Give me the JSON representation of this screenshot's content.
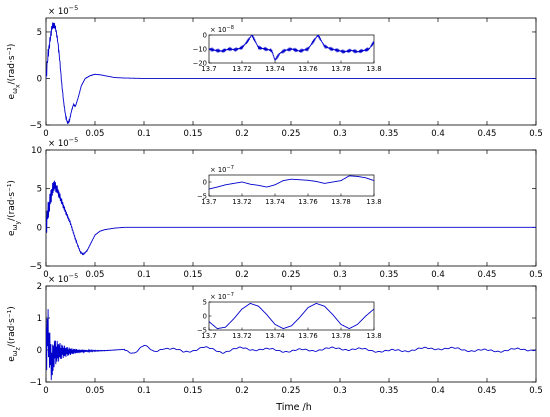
{
  "figure": {
    "xlabel": "Time /h"
  },
  "chart_data": [
    {
      "type": "line",
      "ylabel_main": "e",
      "ylabel_sub1": "ω",
      "ylabel_sub2": "x",
      "ylabel_unit": "/(rad·s⁻¹)",
      "y_exponent_base": "× 10",
      "y_exponent_power": "−5",
      "xlim": [
        0,
        0.5
      ],
      "ylim": [
        -5,
        6.5
      ],
      "xticks": [
        0,
        0.05,
        0.1,
        0.15,
        0.2,
        0.25,
        0.3,
        0.35,
        0.4,
        0.45,
        0.5
      ],
      "xtick_labels": [
        "0",
        "0.05",
        "0.1",
        "0.15",
        "0.2",
        "0.25",
        "0.3",
        "0.35",
        "0.4",
        "0.45",
        "0.5"
      ],
      "yticks": [
        -5,
        0,
        5
      ],
      "ytick_labels": [
        "−5",
        "0",
        "5"
      ],
      "series": [
        {
          "color": "#0000cc",
          "x": [
            0,
            0.002,
            0.004,
            0.006,
            0.008,
            0.01,
            0.012,
            0.014,
            0.016,
            0.018,
            0.02,
            0.022,
            0.024,
            0.026,
            0.028,
            0.03,
            0.033,
            0.036,
            0.04,
            0.045,
            0.05,
            0.055,
            0.06,
            0.07,
            0.08,
            0.1,
            0.15,
            0.2,
            0.3,
            0.4,
            0.5
          ],
          "values": [
            0,
            2.5,
            4,
            5.5,
            5.8,
            5.3,
            4,
            2,
            -0.5,
            -2.5,
            -4,
            -4.8,
            -4.5,
            -3.5,
            -2.8,
            -3,
            -2,
            -0.8,
            0,
            0.3,
            0.45,
            0.4,
            0.3,
            0.1,
            0.05,
            0,
            0,
            0,
            0,
            0,
            0
          ],
          "oscillation": 0.7
        }
      ],
      "inset": {
        "xlim": [
          13.7,
          13.8
        ],
        "ylim": [
          -20,
          0
        ],
        "xticks": [
          13.7,
          13.72,
          13.74,
          13.76,
          13.78,
          13.8
        ],
        "xtick_labels": [
          "13.7",
          "13.72",
          "13.74",
          "13.76",
          "13.78",
          "13.8"
        ],
        "yticks": [
          -20,
          -10,
          0
        ],
        "ytick_labels": [
          "−20",
          "−10",
          "0"
        ],
        "y_exponent_base": "× 10",
        "y_exponent_power": "−8",
        "x": [
          13.7,
          13.704,
          13.708,
          13.712,
          13.716,
          13.72,
          13.723,
          13.726,
          13.73,
          13.734,
          13.738,
          13.74,
          13.743,
          13.746,
          13.75,
          13.755,
          13.76,
          13.763,
          13.766,
          13.77,
          13.774,
          13.778,
          13.782,
          13.786,
          13.79,
          13.794,
          13.797,
          13.8
        ],
        "values": [
          -10,
          -11,
          -11.5,
          -10,
          -10.5,
          -9,
          -5,
          0,
          -9,
          -10,
          -11,
          -18,
          -13,
          -11,
          -10,
          -11.5,
          -10,
          -5,
          0,
          -8,
          -10,
          -11,
          -12,
          -11,
          -12,
          -11,
          -10,
          -5
        ]
      }
    },
    {
      "type": "line",
      "ylabel_main": "e",
      "ylabel_sub1": "ω",
      "ylabel_sub2": "y",
      "ylabel_unit": "/(rad·s⁻¹)",
      "y_exponent_base": "× 10",
      "y_exponent_power": "−5",
      "xlim": [
        0,
        0.5
      ],
      "ylim": [
        -5,
        10
      ],
      "xticks": [
        0,
        0.05,
        0.1,
        0.15,
        0.2,
        0.25,
        0.3,
        0.35,
        0.4,
        0.45,
        0.5
      ],
      "xtick_labels": [
        "0",
        "0.05",
        "0.1",
        "0.15",
        "0.2",
        "0.25",
        "0.3",
        "0.35",
        "0.4",
        "0.45",
        "0.5"
      ],
      "yticks": [
        -5,
        0,
        5,
        10
      ],
      "ytick_labels": [
        "−5",
        "0",
        "5",
        "10"
      ],
      "series": [
        {
          "color": "#0000cc",
          "x": [
            0,
            0.002,
            0.005,
            0.008,
            0.011,
            0.014,
            0.017,
            0.02,
            0.025,
            0.03,
            0.035,
            0.038,
            0.042,
            0.046,
            0.05,
            0.055,
            0.06,
            0.07,
            0.08,
            0.1,
            0.15,
            0.2,
            0.3,
            0.4,
            0.5
          ],
          "values": [
            0,
            2,
            4,
            5.5,
            5,
            4,
            3,
            2,
            0.5,
            -1.5,
            -3.2,
            -3.5,
            -3,
            -2,
            -1,
            -0.5,
            -0.3,
            -0.1,
            0,
            0,
            0,
            0,
            0,
            0,
            0
          ],
          "oscillation": 1.5
        }
      ],
      "inset": {
        "xlim": [
          13.7,
          13.8
        ],
        "ylim": [
          -5,
          2.5
        ],
        "xticks": [
          13.7,
          13.72,
          13.74,
          13.76,
          13.78,
          13.8
        ],
        "xtick_labels": [
          "13.7",
          "13.72",
          "13.74",
          "13.76",
          "13.78",
          "13.8"
        ],
        "yticks": [
          -5,
          0
        ],
        "ytick_labels": [
          "−5",
          "0"
        ],
        "y_exponent_base": "× 10",
        "y_exponent_power": "−7",
        "x": [
          13.7,
          13.705,
          13.71,
          13.715,
          13.72,
          13.725,
          13.73,
          13.735,
          13.74,
          13.745,
          13.75,
          13.755,
          13.76,
          13.765,
          13.77,
          13.775,
          13.78,
          13.785,
          13.79,
          13.795,
          13.8
        ],
        "values": [
          -2.5,
          -1.8,
          -1,
          -0.5,
          0,
          -0.8,
          -1.2,
          -1.8,
          -1,
          0.5,
          1,
          0.8,
          0.6,
          0.2,
          -0.5,
          0,
          0.5,
          2.2,
          2,
          1.5,
          0.5
        ]
      }
    },
    {
      "type": "line",
      "ylabel_main": "e",
      "ylabel_sub1": "ω",
      "ylabel_sub2": "z",
      "ylabel_unit": "/(rad·s⁻¹)",
      "y_exponent_base": "× 10",
      "y_exponent_power": "−5",
      "xlim": [
        0,
        0.5
      ],
      "ylim": [
        -1,
        2
      ],
      "xticks": [
        0,
        0.05,
        0.1,
        0.15,
        0.2,
        0.25,
        0.3,
        0.35,
        0.4,
        0.45,
        0.5
      ],
      "xtick_labels": [
        "0",
        "0.05",
        "0.1",
        "0.15",
        "0.2",
        "0.25",
        "0.3",
        "0.35",
        "0.4",
        "0.45",
        "0.5"
      ],
      "yticks": [
        -1,
        0,
        1,
        2
      ],
      "ytick_labels": [
        "−1",
        "0",
        "1",
        "2"
      ],
      "series": [
        {
          "color": "#0000cc",
          "x": [
            0,
            0.002,
            0.004,
            0.006,
            0.008,
            0.012,
            0.02,
            0.04,
            0.06,
            0.08,
            0.09,
            0.1,
            0.11,
            0.12,
            0.14,
            0.16,
            0.18,
            0.2,
            0.25,
            0.3,
            0.35,
            0.4,
            0.45,
            0.5
          ],
          "values": [
            0,
            0.6,
            -0.1,
            -0.5,
            -0.1,
            -0.05,
            -0.05,
            -0.03,
            -0.02,
            0.02,
            -0.08,
            0.12,
            -0.05,
            0.08,
            -0.06,
            0.07,
            -0.05,
            0.05,
            -0.03,
            0.05,
            -0.04,
            0.06,
            -0.03,
            0.03
          ],
          "oscillation": 0.9
        }
      ],
      "inset": {
        "xlim": [
          13.7,
          13.8
        ],
        "ylim": [
          -5,
          5
        ],
        "xticks": [
          13.7,
          13.72,
          13.74,
          13.76,
          13.78,
          13.8
        ],
        "xtick_labels": [
          "13.7",
          "13.72",
          "13.74",
          "13.76",
          "13.78",
          "13.8"
        ],
        "yticks": [
          -5,
          0,
          5
        ],
        "ytick_labels": [
          "−5",
          "0",
          "5"
        ],
        "y_exponent_base": "× 10",
        "y_exponent_power": "−7",
        "x": [
          13.7,
          13.705,
          13.71,
          13.715,
          13.72,
          13.725,
          13.73,
          13.735,
          13.74,
          13.745,
          13.75,
          13.755,
          13.76,
          13.765,
          13.77,
          13.775,
          13.78,
          13.785,
          13.79,
          13.795,
          13.8
        ],
        "values": [
          -2,
          -4.5,
          -4,
          -1,
          2.5,
          4.5,
          3.5,
          0.5,
          -3,
          -4.5,
          -3.5,
          -0.5,
          3,
          4.5,
          3.5,
          0.5,
          -3,
          -4.5,
          -3,
          0,
          2.5
        ]
      }
    }
  ]
}
